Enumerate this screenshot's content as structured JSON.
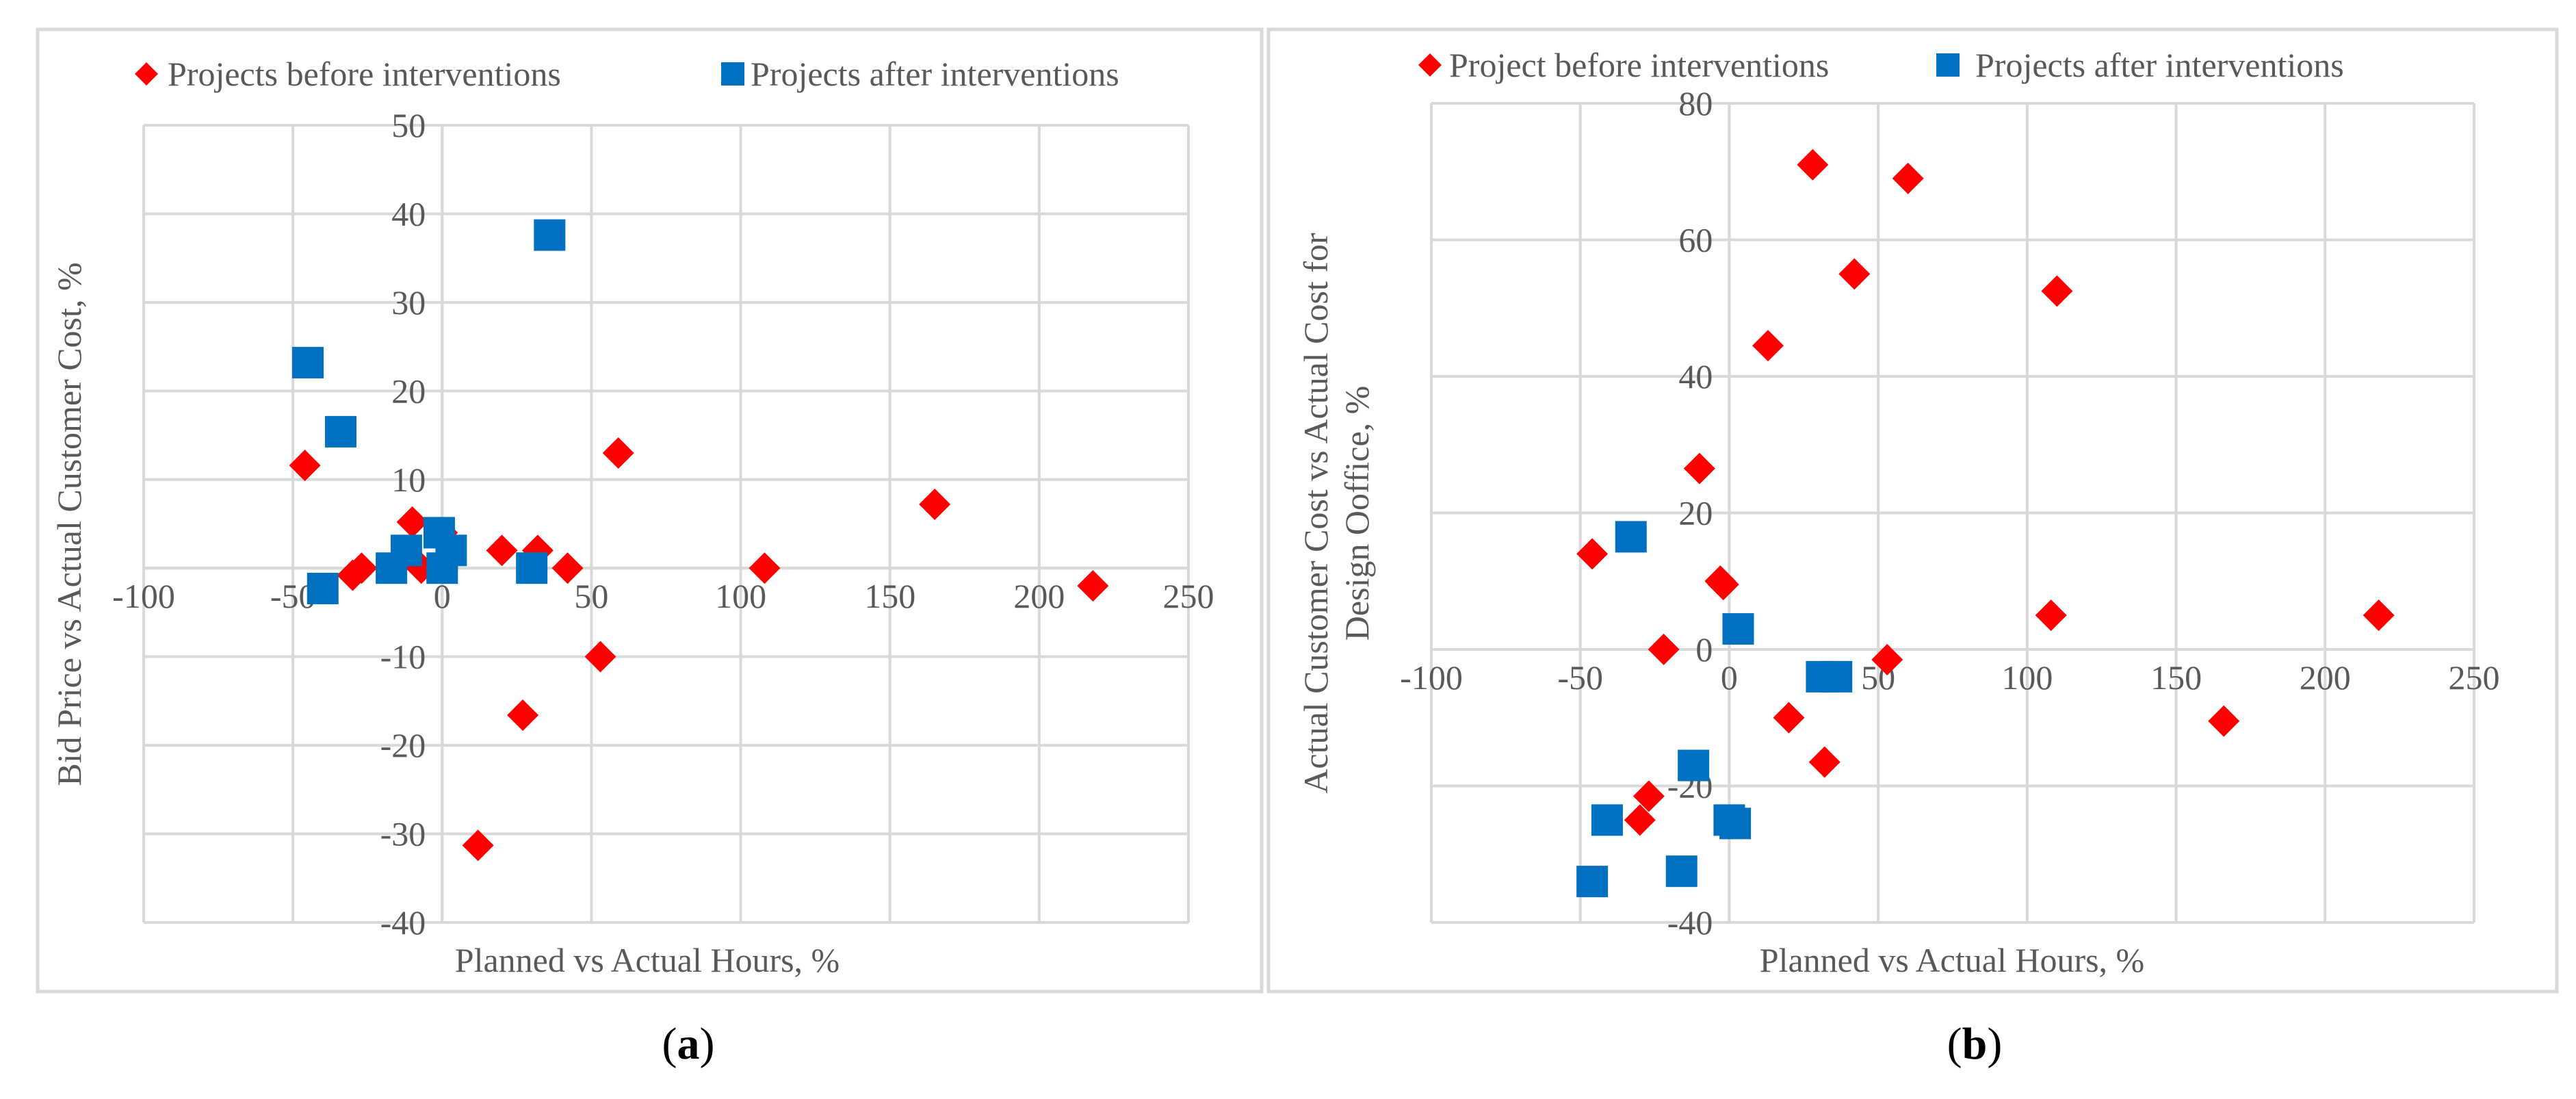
{
  "chart_data": [
    {
      "panel_label": "a",
      "type": "scatter",
      "xlabel": "Planned vs Actual Hours, %",
      "ylabel": "Bid Price vs Actual Customer Cost, %",
      "xlim": [
        -100,
        250
      ],
      "ylim": [
        -40,
        50
      ],
      "xticks": [
        -100,
        -50,
        0,
        50,
        100,
        150,
        200,
        250
      ],
      "yticks": [
        -40,
        -30,
        -20,
        -10,
        0,
        10,
        20,
        30,
        40,
        50
      ],
      "tick_labels_hidden_y": [
        0
      ],
      "tick_labels_hidden_x": [],
      "grid": true,
      "legend_position": "top",
      "series": [
        {
          "name": "Projects before interventions",
          "marker": "diamond",
          "color": "#ff0000",
          "points": [
            {
              "x": -46,
              "y": 11.6
            },
            {
              "x": -30,
              "y": -0.8
            },
            {
              "x": -27,
              "y": 0
            },
            {
              "x": -10,
              "y": 5.2
            },
            {
              "x": -7,
              "y": 0
            },
            {
              "x": 0,
              "y": 4
            },
            {
              "x": 3,
              "y": 2
            },
            {
              "x": 12,
              "y": -31.3
            },
            {
              "x": 20,
              "y": 2
            },
            {
              "x": 27,
              "y": -16.6
            },
            {
              "x": 32,
              "y": 2
            },
            {
              "x": 42,
              "y": 0
            },
            {
              "x": 53,
              "y": -10
            },
            {
              "x": 59,
              "y": 13
            },
            {
              "x": 108,
              "y": 0
            },
            {
              "x": 165,
              "y": 7.2
            },
            {
              "x": 218,
              "y": -2
            }
          ]
        },
        {
          "name": "Projects after interventions",
          "marker": "square",
          "color": "#0070c0",
          "points": [
            {
              "x": -45,
              "y": 23.2
            },
            {
              "x": -40,
              "y": -2.3
            },
            {
              "x": -34,
              "y": 15.4
            },
            {
              "x": -17,
              "y": 0
            },
            {
              "x": -12,
              "y": 2
            },
            {
              "x": -1,
              "y": 4
            },
            {
              "x": 0,
              "y": 0
            },
            {
              "x": 3,
              "y": 2
            },
            {
              "x": 30,
              "y": 0
            },
            {
              "x": 36,
              "y": 37.6
            }
          ]
        }
      ]
    },
    {
      "panel_label": "b",
      "type": "scatter",
      "xlabel": "Planned vs Actual Hours, %",
      "ylabel_lines": [
        "Actual Customer Cost vs Actual Cost for",
        "Design Ooffice, %"
      ],
      "xlim": [
        -100,
        250
      ],
      "ylim": [
        -40,
        80
      ],
      "xticks": [
        -100,
        -50,
        0,
        50,
        100,
        150,
        200,
        250
      ],
      "yticks": [
        -40,
        -20,
        0,
        20,
        40,
        60,
        80
      ],
      "tick_labels_hidden_y": [],
      "tick_labels_hidden_x": [],
      "grid": true,
      "legend_position": "top",
      "series": [
        {
          "name": "Project before interventions",
          "marker": "diamond",
          "color": "#ff0000",
          "points": [
            {
              "x": -46,
              "y": 14
            },
            {
              "x": -30,
              "y": -25
            },
            {
              "x": -27,
              "y": -21.5
            },
            {
              "x": -22,
              "y": 0
            },
            {
              "x": -10,
              "y": 26.5
            },
            {
              "x": -3,
              "y": 10
            },
            {
              "x": -2,
              "y": 9.5
            },
            {
              "x": 13,
              "y": 44.5
            },
            {
              "x": 20,
              "y": -10
            },
            {
              "x": 28,
              "y": 71
            },
            {
              "x": 32,
              "y": -16.5
            },
            {
              "x": 42,
              "y": 55
            },
            {
              "x": 53,
              "y": -1.5
            },
            {
              "x": 60,
              "y": 69
            },
            {
              "x": 108,
              "y": 5
            },
            {
              "x": 110,
              "y": 52.5
            },
            {
              "x": 166,
              "y": -10.5
            },
            {
              "x": 218,
              "y": 5
            }
          ]
        },
        {
          "name": "Projects after interventions",
          "marker": "square",
          "color": "#0070c0",
          "points": [
            {
              "x": -46,
              "y": -34
            },
            {
              "x": -41,
              "y": -25
            },
            {
              "x": -33,
              "y": 16.5
            },
            {
              "x": -16,
              "y": -32.5
            },
            {
              "x": -12,
              "y": -17
            },
            {
              "x": 0,
              "y": -25
            },
            {
              "x": 2,
              "y": -25.5
            },
            {
              "x": 3,
              "y": 3
            },
            {
              "x": 31,
              "y": -4
            },
            {
              "x": 36,
              "y": -4
            }
          ]
        }
      ]
    }
  ],
  "panel_labels": {
    "a": {
      "open": "(",
      "letter": "a",
      "close": ")"
    },
    "b": {
      "open": "(",
      "letter": "b",
      "close": ")"
    }
  }
}
